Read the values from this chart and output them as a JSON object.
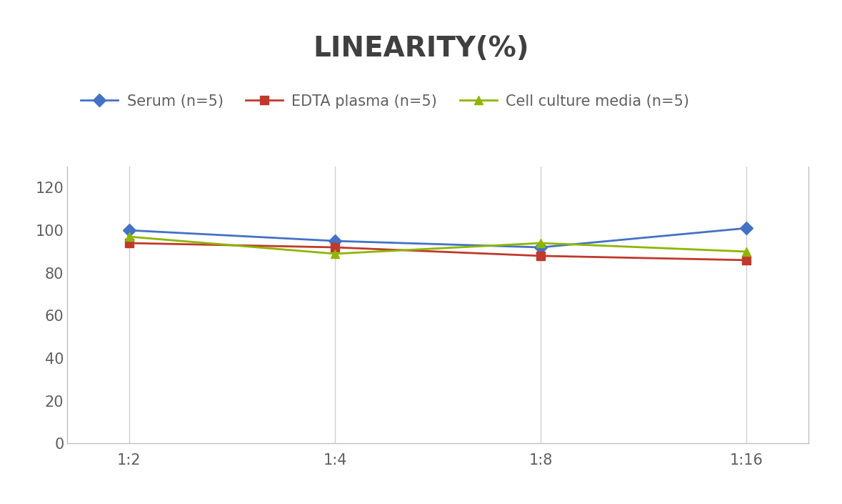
{
  "title": "LINEARITY(%)",
  "title_fontsize": 28,
  "title_fontweight": "bold",
  "title_color": "#404040",
  "x_labels": [
    "1:2",
    "1:4",
    "1:8",
    "1:16"
  ],
  "x_positions": [
    0,
    1,
    2,
    3
  ],
  "series": [
    {
      "label": "Serum (n=5)",
      "values": [
        100,
        95,
        92,
        101
      ],
      "color": "#4472C4",
      "marker": "D",
      "marker_size": 9,
      "linewidth": 2.0
    },
    {
      "label": "EDTA plasma (n=5)",
      "values": [
        94,
        92,
        88,
        86
      ],
      "color": "#C0392B",
      "marker": "s",
      "marker_size": 9,
      "linewidth": 2.0
    },
    {
      "label": "Cell culture media (n=5)",
      "values": [
        97,
        89,
        94,
        90
      ],
      "color": "#8DB600",
      "marker": "^",
      "marker_size": 9,
      "linewidth": 2.0
    }
  ],
  "ylim": [
    0,
    130
  ],
  "yticks": [
    0,
    20,
    40,
    60,
    80,
    100,
    120
  ],
  "tick_fontsize": 15,
  "tick_color": "#606060",
  "legend_fontsize": 15,
  "grid_color": "#D0D0D0",
  "bg_color": "#FFFFFF",
  "spine_color": "#C0C0C0"
}
